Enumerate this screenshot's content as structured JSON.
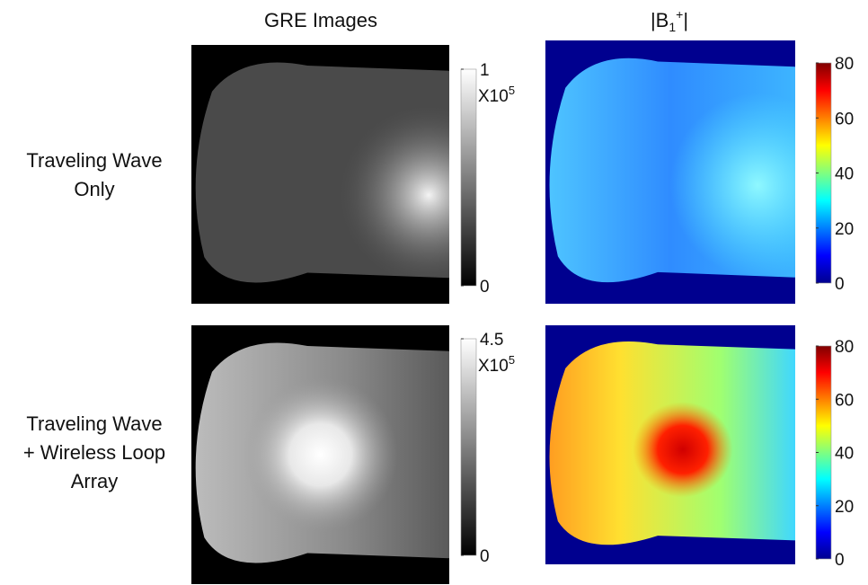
{
  "column_titles": {
    "gre": "GRE Images",
    "b1": {
      "open": "|B",
      "sub": "1",
      "sup": "+",
      "close": "|"
    }
  },
  "rows": [
    {
      "label_lines": [
        "Traveling Wave",
        "Only"
      ],
      "gre_colorbar": {
        "range": [
          0,
          1
        ],
        "ticks": [
          0,
          1
        ],
        "multiplier": "X10",
        "exponent": "5"
      },
      "b1_colorbar": {
        "range": [
          0,
          80
        ],
        "ticks": [
          0,
          20,
          40,
          60,
          80
        ]
      }
    },
    {
      "label_lines": [
        "Traveling Wave",
        "+ Wireless Loop",
        "Array"
      ],
      "gre_colorbar": {
        "range": [
          0,
          4.5
        ],
        "ticks": [
          0,
          4.5
        ],
        "multiplier": "X10",
        "exponent": "5"
      },
      "b1_colorbar": {
        "range": [
          0,
          80
        ],
        "ticks": [
          0,
          20,
          40,
          60,
          80
        ]
      }
    }
  ]
}
